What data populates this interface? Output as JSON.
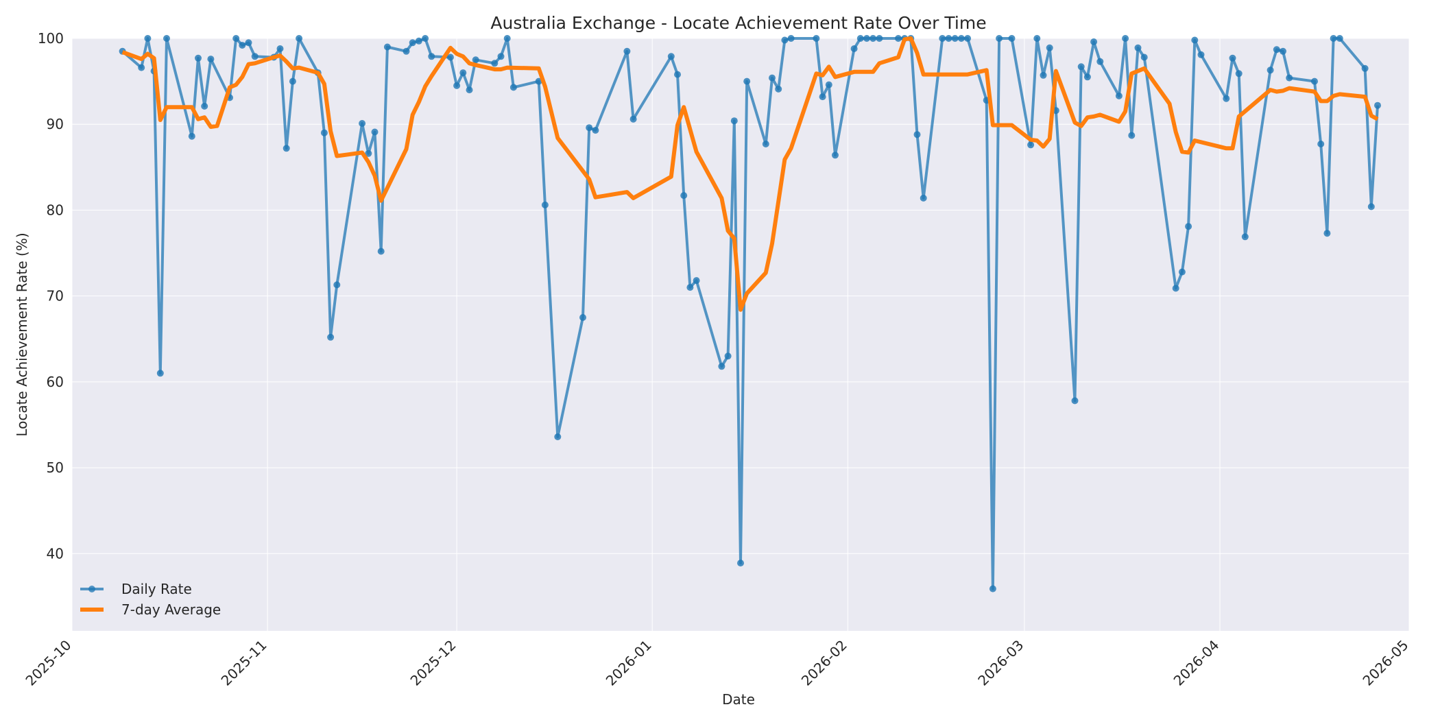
{
  "chart_data": {
    "type": "line",
    "title": "Australia Exchange - Locate Achievement Rate Over Time",
    "xlabel": "Date",
    "ylabel": "Locate Achievement Rate (%)",
    "xlim": [
      "2025-10-01",
      "2026-05-01"
    ],
    "ylim": [
      31,
      100
    ],
    "x_ticks": [
      "2025-10",
      "2025-11",
      "2025-12",
      "2026-01",
      "2026-02",
      "2026-03",
      "2026-04",
      "2026-05"
    ],
    "y_ticks": [
      40,
      50,
      60,
      70,
      80,
      90,
      100
    ],
    "grid": true,
    "legend_position": "lower-left",
    "colors": {
      "daily": "#1f77b4",
      "average": "#ff7f0e",
      "plot_background": "#eaeaf2",
      "grid": "#ffffff"
    },
    "series": [
      {
        "name": "Daily Rate",
        "style": "line-with-markers",
        "points": [
          [
            "2025-10-09",
            98.5
          ],
          [
            "2025-10-12",
            96.6
          ],
          [
            "2025-10-13",
            100
          ],
          [
            "2025-10-14",
            96.2
          ],
          [
            "2025-10-15",
            61.0
          ],
          [
            "2025-10-16",
            100
          ],
          [
            "2025-10-20",
            88.6
          ],
          [
            "2025-10-21",
            97.7
          ],
          [
            "2025-10-22",
            92.1
          ],
          [
            "2025-10-23",
            97.6
          ],
          [
            "2025-10-26",
            93.1
          ],
          [
            "2025-10-27",
            100
          ],
          [
            "2025-10-28",
            99.2
          ],
          [
            "2025-10-29",
            99.5
          ],
          [
            "2025-10-30",
            97.9
          ],
          [
            "2025-11-02",
            97.8
          ],
          [
            "2025-11-03",
            98.8
          ],
          [
            "2025-11-04",
            87.2
          ],
          [
            "2025-11-05",
            95.0
          ],
          [
            "2025-11-06",
            100
          ],
          [
            "2025-11-09",
            96.0
          ],
          [
            "2025-11-10",
            89.0
          ],
          [
            "2025-11-11",
            65.2
          ],
          [
            "2025-11-12",
            71.3
          ],
          [
            "2025-11-16",
            90.1
          ],
          [
            "2025-11-17",
            86.6
          ],
          [
            "2025-11-18",
            89.1
          ],
          [
            "2025-11-19",
            75.2
          ],
          [
            "2025-11-20",
            99.0
          ],
          [
            "2025-11-23",
            98.5
          ],
          [
            "2025-11-24",
            99.5
          ],
          [
            "2025-11-25",
            99.7
          ],
          [
            "2025-11-26",
            100
          ],
          [
            "2025-11-27",
            97.9
          ],
          [
            "2025-11-30",
            97.8
          ],
          [
            "2025-12-01",
            94.5
          ],
          [
            "2025-12-02",
            96.0
          ],
          [
            "2025-12-03",
            94.0
          ],
          [
            "2025-12-04",
            97.5
          ],
          [
            "2025-12-07",
            97.1
          ],
          [
            "2025-12-08",
            97.9
          ],
          [
            "2025-12-09",
            100
          ],
          [
            "2025-12-10",
            94.3
          ],
          [
            "2025-12-14",
            95.0
          ],
          [
            "2025-12-15",
            80.6
          ],
          [
            "2025-12-17",
            53.6
          ],
          [
            "2025-12-21",
            67.5
          ],
          [
            "2025-12-22",
            89.6
          ],
          [
            "2025-12-23",
            89.3
          ],
          [
            "2025-12-28",
            98.5
          ],
          [
            "2025-12-29",
            90.6
          ],
          [
            "2026-01-04",
            97.9
          ],
          [
            "2026-01-05",
            95.8
          ],
          [
            "2026-01-06",
            81.7
          ],
          [
            "2026-01-07",
            71.0
          ],
          [
            "2026-01-08",
            71.8
          ],
          [
            "2026-01-12",
            61.8
          ],
          [
            "2026-01-13",
            63.0
          ],
          [
            "2026-01-14",
            90.4
          ],
          [
            "2026-01-15",
            38.9
          ],
          [
            "2026-01-16",
            95.0
          ],
          [
            "2026-01-19",
            87.7
          ],
          [
            "2026-01-20",
            95.4
          ],
          [
            "2026-01-21",
            94.1
          ],
          [
            "2026-01-22",
            99.8
          ],
          [
            "2026-01-23",
            100
          ],
          [
            "2026-01-27",
            100
          ],
          [
            "2026-01-28",
            93.2
          ],
          [
            "2026-01-29",
            94.6
          ],
          [
            "2026-01-30",
            86.4
          ],
          [
            "2026-02-02",
            98.8
          ],
          [
            "2026-02-03",
            100
          ],
          [
            "2026-02-04",
            100
          ],
          [
            "2026-02-05",
            100
          ],
          [
            "2026-02-06",
            100
          ],
          [
            "2026-02-09",
            100
          ],
          [
            "2026-02-10",
            100
          ],
          [
            "2026-02-11",
            100
          ],
          [
            "2026-02-12",
            88.8
          ],
          [
            "2026-02-13",
            81.4
          ],
          [
            "2026-02-16",
            100
          ],
          [
            "2026-02-17",
            100
          ],
          [
            "2026-02-18",
            100
          ],
          [
            "2026-02-19",
            100
          ],
          [
            "2026-02-20",
            100
          ],
          [
            "2026-02-23",
            92.8
          ],
          [
            "2026-02-24",
            35.9
          ],
          [
            "2026-02-25",
            100
          ],
          [
            "2026-02-27",
            100
          ],
          [
            "2026-03-02",
            87.6
          ],
          [
            "2026-03-03",
            100
          ],
          [
            "2026-03-04",
            95.7
          ],
          [
            "2026-03-05",
            98.9
          ],
          [
            "2026-03-06",
            91.6
          ],
          [
            "2026-03-09",
            57.8
          ],
          [
            "2026-03-10",
            96.7
          ],
          [
            "2026-03-11",
            95.5
          ],
          [
            "2026-03-12",
            99.6
          ],
          [
            "2026-03-13",
            97.3
          ],
          [
            "2026-03-16",
            93.3
          ],
          [
            "2026-03-17",
            100
          ],
          [
            "2026-03-18",
            88.7
          ],
          [
            "2026-03-19",
            98.9
          ],
          [
            "2026-03-20",
            97.8
          ],
          [
            "2026-03-25",
            70.9
          ],
          [
            "2026-03-26",
            72.8
          ],
          [
            "2026-03-27",
            78.1
          ],
          [
            "2026-03-28",
            99.8
          ],
          [
            "2026-03-29",
            98.1
          ],
          [
            "2026-04-02",
            93.0
          ],
          [
            "2026-04-03",
            97.7
          ],
          [
            "2026-04-04",
            95.9
          ],
          [
            "2026-04-05",
            76.9
          ],
          [
            "2026-04-09",
            96.3
          ],
          [
            "2026-04-10",
            98.7
          ],
          [
            "2026-04-11",
            98.5
          ],
          [
            "2026-04-12",
            95.4
          ],
          [
            "2026-04-16",
            95.0
          ],
          [
            "2026-04-17",
            87.7
          ],
          [
            "2026-04-18",
            77.3
          ],
          [
            "2026-04-19",
            100
          ],
          [
            "2026-04-20",
            100
          ],
          [
            "2026-04-24",
            96.5
          ],
          [
            "2026-04-25",
            80.4
          ],
          [
            "2026-04-26",
            92.2
          ]
        ]
      },
      {
        "name": "7-day Average",
        "style": "line",
        "points": [
          [
            "2025-10-09",
            98.4
          ],
          [
            "2025-10-12",
            97.6
          ],
          [
            "2025-10-13",
            98.2
          ],
          [
            "2025-10-14",
            97.7
          ],
          [
            "2025-10-15",
            90.5
          ],
          [
            "2025-10-16",
            92.0
          ],
          [
            "2025-10-20",
            92.0
          ],
          [
            "2025-10-21",
            90.6
          ],
          [
            "2025-10-22",
            90.8
          ],
          [
            "2025-10-23",
            89.7
          ],
          [
            "2025-10-24",
            89.8
          ],
          [
            "2025-10-26",
            94.3
          ],
          [
            "2025-10-27",
            94.6
          ],
          [
            "2025-10-28",
            95.5
          ],
          [
            "2025-10-29",
            97.0
          ],
          [
            "2025-10-30",
            97.1
          ],
          [
            "2025-11-02",
            97.8
          ],
          [
            "2025-11-03",
            98.0
          ],
          [
            "2025-11-04",
            97.3
          ],
          [
            "2025-11-05",
            96.5
          ],
          [
            "2025-11-06",
            96.6
          ],
          [
            "2025-11-09",
            96.0
          ],
          [
            "2025-11-10",
            94.7
          ],
          [
            "2025-11-11",
            89.2
          ],
          [
            "2025-11-12",
            86.3
          ],
          [
            "2025-11-16",
            86.7
          ],
          [
            "2025-11-17",
            85.6
          ],
          [
            "2025-11-18",
            84.0
          ],
          [
            "2025-11-19",
            81.1
          ],
          [
            "2025-11-23",
            87.1
          ],
          [
            "2025-11-24",
            91.1
          ],
          [
            "2025-11-25",
            92.6
          ],
          [
            "2025-11-26",
            94.4
          ],
          [
            "2025-11-27",
            95.6
          ],
          [
            "2025-11-30",
            98.9
          ],
          [
            "2025-12-01",
            98.2
          ],
          [
            "2025-12-02",
            97.9
          ],
          [
            "2025-12-03",
            97.1
          ],
          [
            "2025-12-04",
            96.9
          ],
          [
            "2025-12-07",
            96.4
          ],
          [
            "2025-12-08",
            96.4
          ],
          [
            "2025-12-09",
            96.6
          ],
          [
            "2025-12-14",
            96.5
          ],
          [
            "2025-12-15",
            94.4
          ],
          [
            "2025-12-17",
            88.4
          ],
          [
            "2025-12-22",
            83.6
          ],
          [
            "2025-12-23",
            81.5
          ],
          [
            "2025-12-28",
            82.1
          ],
          [
            "2025-12-29",
            81.4
          ],
          [
            "2026-01-04",
            83.9
          ],
          [
            "2026-01-05",
            89.9
          ],
          [
            "2026-01-06",
            92.0
          ],
          [
            "2026-01-08",
            86.8
          ],
          [
            "2026-01-12",
            81.4
          ],
          [
            "2026-01-13",
            77.6
          ],
          [
            "2026-01-14",
            76.7
          ],
          [
            "2026-01-15",
            68.4
          ],
          [
            "2026-01-16",
            70.3
          ],
          [
            "2026-01-19",
            72.7
          ],
          [
            "2026-01-20",
            76.1
          ],
          [
            "2026-01-21",
            81.0
          ],
          [
            "2026-01-22",
            85.9
          ],
          [
            "2026-01-23",
            87.2
          ],
          [
            "2026-01-27",
            95.9
          ],
          [
            "2026-01-28",
            95.7
          ],
          [
            "2026-01-29",
            96.7
          ],
          [
            "2026-01-30",
            95.5
          ],
          [
            "2026-02-02",
            96.1
          ],
          [
            "2026-02-05",
            96.1
          ],
          [
            "2026-02-06",
            97.1
          ],
          [
            "2026-02-09",
            97.8
          ],
          [
            "2026-02-10",
            99.9
          ],
          [
            "2026-02-11",
            100
          ],
          [
            "2026-02-12",
            98.3
          ],
          [
            "2026-02-13",
            95.8
          ],
          [
            "2026-02-20",
            95.8
          ],
          [
            "2026-02-23",
            96.3
          ],
          [
            "2026-02-24",
            89.9
          ],
          [
            "2026-02-27",
            89.9
          ],
          [
            "2026-03-02",
            88.2
          ],
          [
            "2026-03-03",
            88.1
          ],
          [
            "2026-03-04",
            87.4
          ],
          [
            "2026-03-05",
            88.3
          ],
          [
            "2026-03-06",
            96.2
          ],
          [
            "2026-03-09",
            90.2
          ],
          [
            "2026-03-10",
            89.8
          ],
          [
            "2026-03-11",
            90.8
          ],
          [
            "2026-03-12",
            90.9
          ],
          [
            "2026-03-13",
            91.1
          ],
          [
            "2026-03-16",
            90.3
          ],
          [
            "2026-03-17",
            91.5
          ],
          [
            "2026-03-18",
            95.9
          ],
          [
            "2026-03-20",
            96.5
          ],
          [
            "2026-03-24",
            92.4
          ],
          [
            "2026-03-25",
            89.1
          ],
          [
            "2026-03-26",
            86.8
          ],
          [
            "2026-03-27",
            86.7
          ],
          [
            "2026-03-28",
            88.1
          ],
          [
            "2026-04-02",
            87.2
          ],
          [
            "2026-04-03",
            87.2
          ],
          [
            "2026-04-04",
            90.9
          ],
          [
            "2026-04-09",
            94.0
          ],
          [
            "2026-04-10",
            93.8
          ],
          [
            "2026-04-11",
            93.9
          ],
          [
            "2026-04-12",
            94.2
          ],
          [
            "2026-04-16",
            93.8
          ],
          [
            "2026-04-17",
            92.7
          ],
          [
            "2026-04-18",
            92.7
          ],
          [
            "2026-04-19",
            93.3
          ],
          [
            "2026-04-20",
            93.5
          ],
          [
            "2026-04-24",
            93.2
          ],
          [
            "2026-04-25",
            91.0
          ],
          [
            "2026-04-26",
            90.6
          ]
        ]
      }
    ]
  }
}
